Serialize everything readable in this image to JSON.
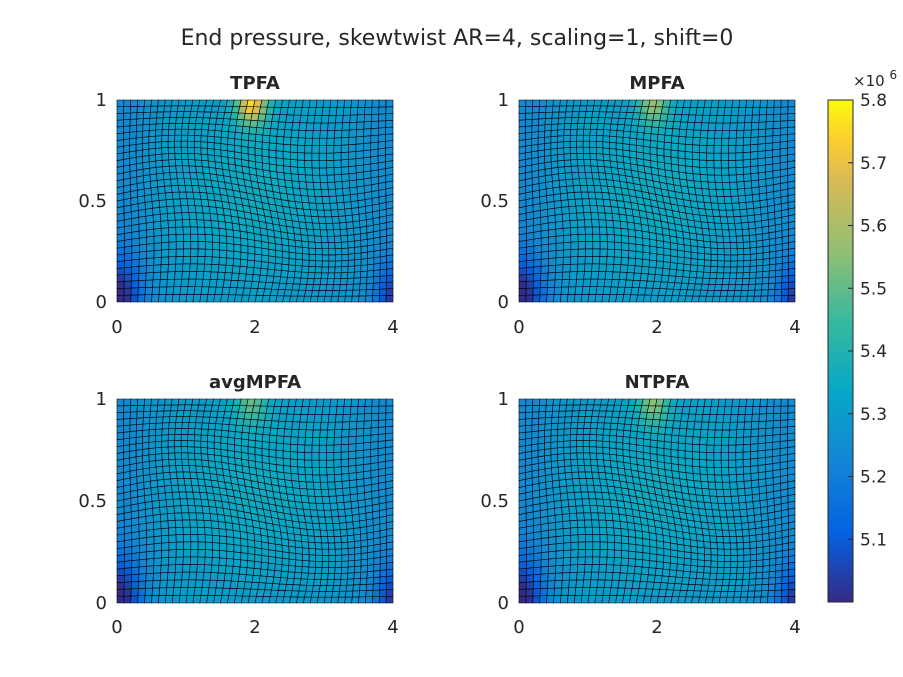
{
  "chart_data": {
    "type": "heatmap",
    "title": "End pressure, skewtwist AR=4, scaling=1, shift=0",
    "shared_axes": {
      "xlim": [
        0,
        4
      ],
      "ylim": [
        0,
        1
      ],
      "xticks": [
        "0",
        "2",
        "4"
      ],
      "yticks": [
        "0",
        "0.5",
        "1"
      ]
    },
    "panels": [
      {
        "title": "TPFA",
        "max_value": 5.8,
        "hotspot": {
          "x": 1.95,
          "y": 0.98
        }
      },
      {
        "title": "MPFA",
        "max_value": 5.62,
        "hotspot": {
          "x": 1.95,
          "y": 0.98
        }
      },
      {
        "title": "avgMPFA",
        "max_value": 5.55,
        "hotspot": {
          "x": 1.95,
          "y": 0.98
        }
      },
      {
        "title": "NTPFA",
        "max_value": 5.6,
        "hotspot": {
          "x": 1.95,
          "y": 0.98
        }
      }
    ],
    "mesh": {
      "cells_x": 40,
      "cells_y": 30,
      "grid": true,
      "edge_color": "#000000"
    },
    "colorbar": {
      "colormap": "parula",
      "exponent_label": "×10",
      "exponent": "6",
      "clim": [
        5.0,
        5.8
      ],
      "ticks": [
        5.1,
        5.2,
        5.3,
        5.4,
        5.5,
        5.6,
        5.7,
        5.8
      ],
      "tick_labels": [
        "5.1",
        "5.2",
        "5.3",
        "5.4",
        "5.5",
        "5.6",
        "5.7",
        "5.8"
      ],
      "position": "right"
    }
  }
}
